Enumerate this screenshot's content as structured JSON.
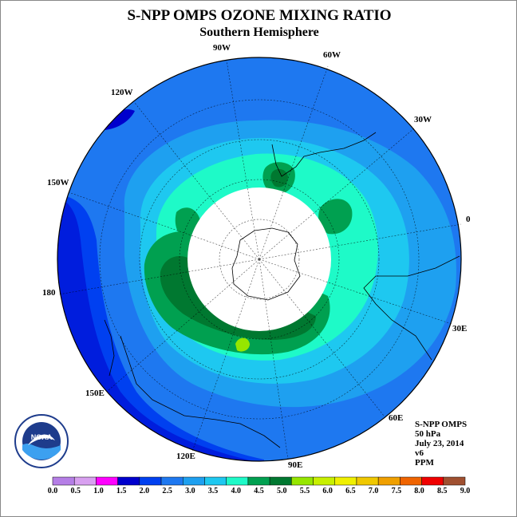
{
  "title": "S-NPP OMPS OZONE MIXING RATIO",
  "subtitle": "Southern Hemisphere",
  "longitudes": {
    "w90": "90W",
    "w60": "60W",
    "w30": "30W",
    "e0": "0",
    "e30": "30E",
    "e60": "60E",
    "e90": "90E",
    "e120": "120E",
    "e150": "150E",
    "d180": "180",
    "w150": "150W",
    "w120": "120W"
  },
  "info": {
    "product": "S-NPP OMPS",
    "level": "50 hPa",
    "date": "July 23, 2014",
    "version": "v6",
    "units": "PPM"
  },
  "colorbar": {
    "ticks": [
      "0.0",
      "0.5",
      "1.0",
      "1.5",
      "2.0",
      "2.5",
      "3.0",
      "3.5",
      "4.0",
      "4.5",
      "5.0",
      "5.5",
      "6.0",
      "6.5",
      "7.0",
      "7.5",
      "8.0",
      "8.5",
      "9.0"
    ],
    "colors": [
      "#b57ee6",
      "#d8a0f0",
      "#ff00ff",
      "#0000cd",
      "#0040f0",
      "#1e78f0",
      "#1ea0f0",
      "#1ec8f0",
      "#1efac8",
      "#00a050",
      "#007830",
      "#96e600",
      "#c8f000",
      "#f0f000",
      "#f0c800",
      "#f0a000",
      "#f06400",
      "#f00000",
      "#a05030"
    ]
  },
  "logo_text": "NOAA"
}
